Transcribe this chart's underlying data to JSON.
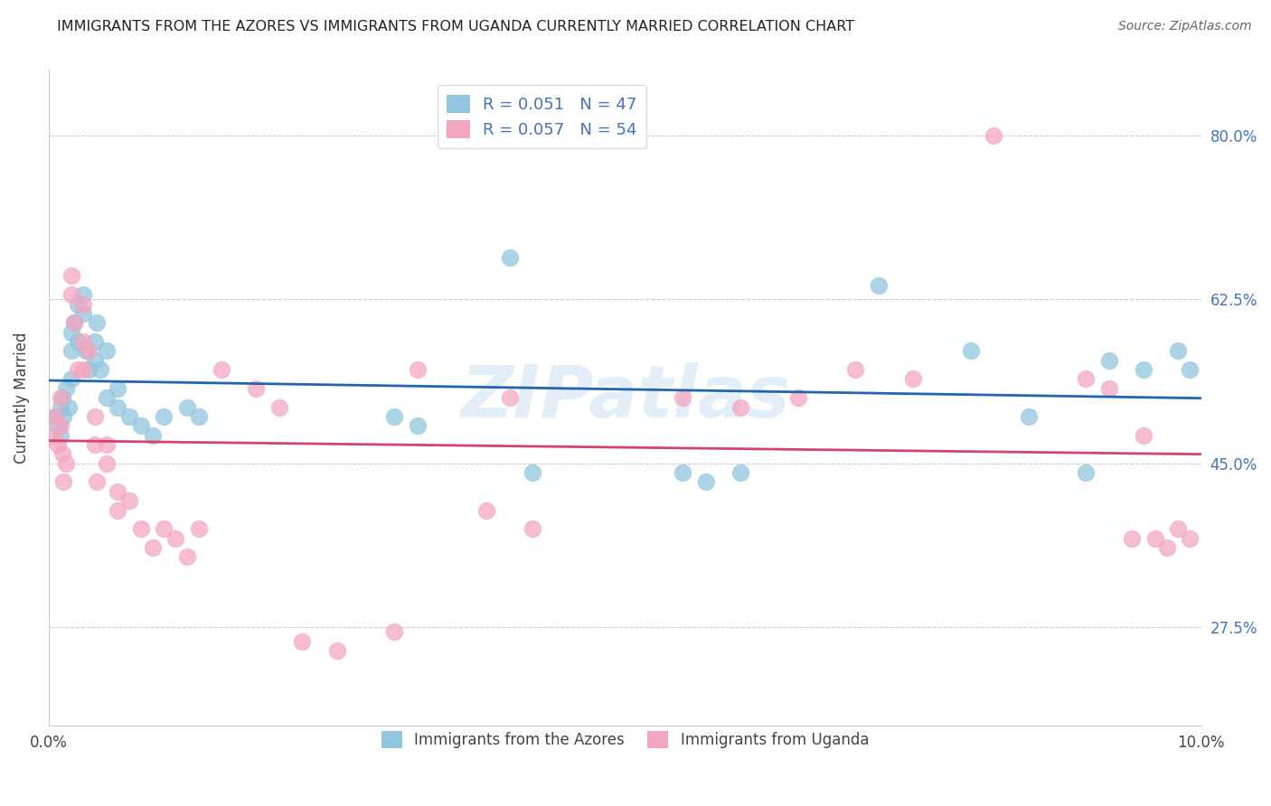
{
  "title": "IMMIGRANTS FROM THE AZORES VS IMMIGRANTS FROM UGANDA CURRENTLY MARRIED CORRELATION CHART",
  "source": "Source: ZipAtlas.com",
  "ylabel": "Currently Married",
  "yticks": [
    0.275,
    0.45,
    0.625,
    0.8
  ],
  "ytick_labels": [
    "27.5%",
    "45.0%",
    "62.5%",
    "80.0%"
  ],
  "xmin": 0.0,
  "xmax": 0.1,
  "ymin": 0.17,
  "ymax": 0.87,
  "legend_r_blue": "R = 0.051",
  "legend_n_blue": "N = 47",
  "legend_r_pink": "R = 0.057",
  "legend_n_pink": "N = 54",
  "color_blue": "#92c5de",
  "color_pink": "#f4a6c0",
  "line_color_blue": "#2166ac",
  "line_color_pink": "#d6426e",
  "watermark": "ZIPatlas",
  "blue_x": [
    0.0005,
    0.0008,
    0.001,
    0.001,
    0.0012,
    0.0013,
    0.0015,
    0.0017,
    0.002,
    0.002,
    0.002,
    0.0022,
    0.0025,
    0.0025,
    0.003,
    0.003,
    0.0032,
    0.0035,
    0.004,
    0.004,
    0.0042,
    0.0045,
    0.005,
    0.005,
    0.006,
    0.006,
    0.007,
    0.008,
    0.009,
    0.01,
    0.012,
    0.013,
    0.03,
    0.032,
    0.04,
    0.042,
    0.055,
    0.057,
    0.06,
    0.072,
    0.08,
    0.085,
    0.09,
    0.092,
    0.095,
    0.098,
    0.099
  ],
  "blue_y": [
    0.5,
    0.49,
    0.51,
    0.48,
    0.52,
    0.5,
    0.53,
    0.51,
    0.54,
    0.57,
    0.59,
    0.6,
    0.62,
    0.58,
    0.63,
    0.61,
    0.57,
    0.55,
    0.58,
    0.56,
    0.6,
    0.55,
    0.57,
    0.52,
    0.53,
    0.51,
    0.5,
    0.49,
    0.48,
    0.5,
    0.51,
    0.5,
    0.5,
    0.49,
    0.67,
    0.44,
    0.44,
    0.43,
    0.44,
    0.64,
    0.57,
    0.5,
    0.44,
    0.56,
    0.55,
    0.57,
    0.55
  ],
  "pink_x": [
    0.0004,
    0.0006,
    0.0008,
    0.001,
    0.001,
    0.0012,
    0.0013,
    0.0015,
    0.002,
    0.002,
    0.0022,
    0.0025,
    0.003,
    0.003,
    0.003,
    0.0035,
    0.004,
    0.004,
    0.0042,
    0.005,
    0.005,
    0.006,
    0.006,
    0.007,
    0.008,
    0.009,
    0.01,
    0.011,
    0.012,
    0.013,
    0.015,
    0.018,
    0.02,
    0.022,
    0.025,
    0.03,
    0.032,
    0.038,
    0.04,
    0.042,
    0.055,
    0.06,
    0.065,
    0.07,
    0.075,
    0.082,
    0.09,
    0.092,
    0.094,
    0.095,
    0.096,
    0.097,
    0.098,
    0.099
  ],
  "pink_y": [
    0.48,
    0.5,
    0.47,
    0.52,
    0.49,
    0.46,
    0.43,
    0.45,
    0.65,
    0.63,
    0.6,
    0.55,
    0.55,
    0.58,
    0.62,
    0.57,
    0.5,
    0.47,
    0.43,
    0.45,
    0.47,
    0.42,
    0.4,
    0.41,
    0.38,
    0.36,
    0.38,
    0.37,
    0.35,
    0.38,
    0.55,
    0.53,
    0.51,
    0.26,
    0.25,
    0.27,
    0.55,
    0.4,
    0.52,
    0.38,
    0.52,
    0.51,
    0.52,
    0.55,
    0.54,
    0.8,
    0.54,
    0.53,
    0.37,
    0.48,
    0.37,
    0.36,
    0.38,
    0.37
  ],
  "grid_color": "#cccccc"
}
